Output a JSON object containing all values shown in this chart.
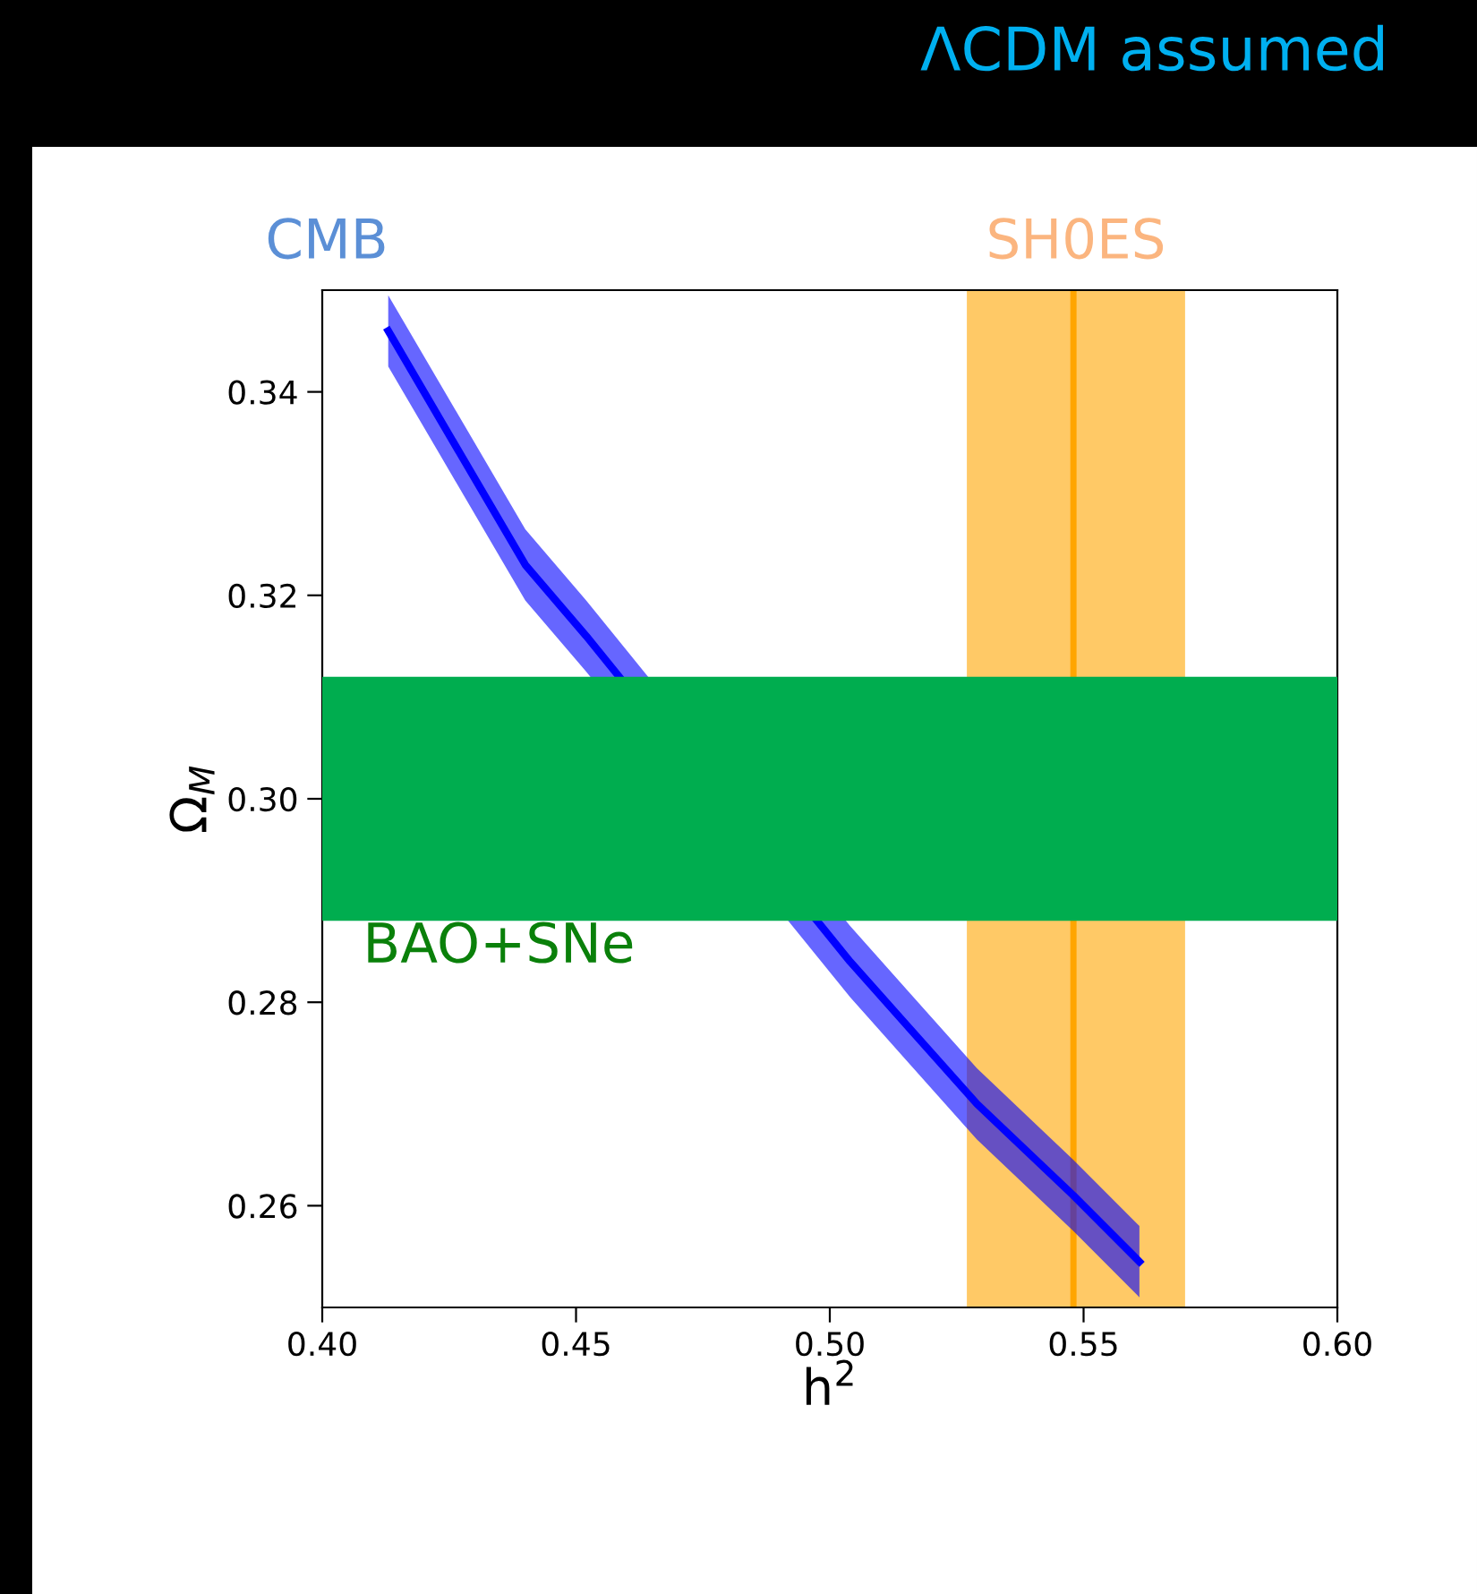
{
  "chart_data": {
    "type": "line",
    "title": "ΛCDM assumed",
    "xlabel": "h$^{2}$",
    "ylabel": "Ω$_{M}$",
    "x": [
      0.413,
      0.44,
      0.452,
      0.504,
      0.529,
      0.548,
      0.561
    ],
    "series": [
      {
        "name": "CMB",
        "color": "#0000ff",
        "values": [
          0.346,
          0.323,
          0.316,
          0.284,
          0.27,
          0.261,
          0.2545
        ],
        "lower": [
          0.3425,
          0.3195,
          0.3125,
          0.2805,
          0.2665,
          0.2575,
          0.251
        ],
        "upper": [
          0.3495,
          0.3265,
          0.3195,
          0.2875,
          0.2735,
          0.2645,
          0.258
        ]
      }
    ],
    "bands": [
      {
        "axis": "x",
        "from": 0.527,
        "to": 0.57,
        "label": "SH0ES",
        "color": "#ffc966"
      },
      {
        "axis": "y",
        "from": 0.288,
        "to": 0.312,
        "label": "BAO+SNe",
        "color": "#00ad4f"
      }
    ],
    "ref_lines": [
      {
        "axis": "x",
        "value": 0.548,
        "color": "#ffa500"
      }
    ],
    "xlim": [
      0.4,
      0.6
    ],
    "ylim": [
      0.25,
      0.35
    ],
    "xticks": [
      {
        "value": 0.4,
        "label": "0.40"
      },
      {
        "value": 0.45,
        "label": "0.45"
      },
      {
        "value": 0.5,
        "label": "0.50"
      },
      {
        "value": 0.55,
        "label": "0.55"
      },
      {
        "value": 0.6,
        "label": "0.60"
      }
    ],
    "yticks": [
      0.26,
      0.28,
      {
        "value": 0.3,
        "label": "0.30"
      },
      0.32,
      0.34
    ],
    "grid": false,
    "legend": false,
    "marker": "none",
    "line_style": "solid"
  }
}
